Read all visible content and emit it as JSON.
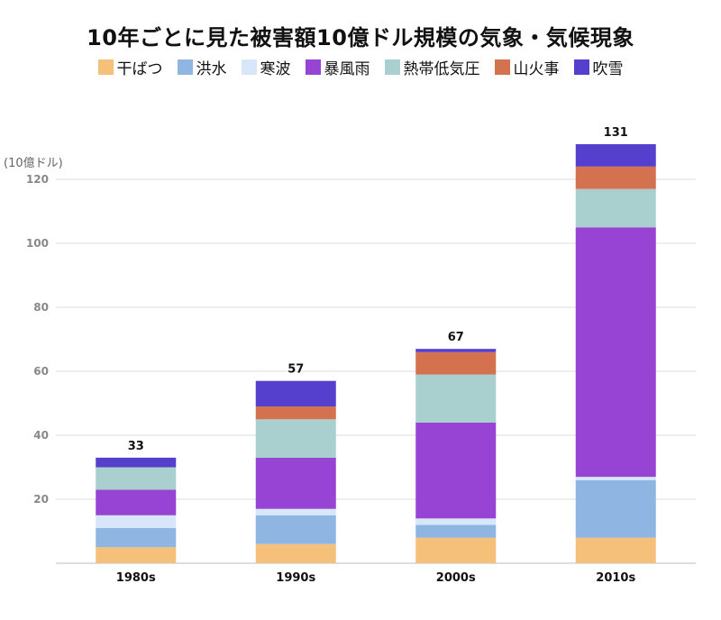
{
  "chart_data": {
    "type": "bar",
    "stacked": true,
    "title": "10年ごとに見た被害額10億ドル規模の気象・気候現象",
    "ylabel": "(10億ドル)",
    "xlabel": "",
    "ylim": [
      0,
      131
    ],
    "yticks": [
      20,
      40,
      60,
      80,
      100,
      120
    ],
    "grid": true,
    "legend_position": "top",
    "categories": [
      "1980s",
      "1990s",
      "2000s",
      "2010s"
    ],
    "totals": [
      33,
      57,
      67,
      131
    ],
    "series": [
      {
        "name": "干ばつ",
        "color": "#f5c07a",
        "values": [
          5,
          6,
          8,
          8
        ]
      },
      {
        "name": "洪水",
        "color": "#8fb5e3",
        "values": [
          6,
          9,
          4,
          18
        ]
      },
      {
        "name": "寒波",
        "color": "#d7e6f8",
        "values": [
          4,
          2,
          2,
          1
        ]
      },
      {
        "name": "暴風雨",
        "color": "#9743d3",
        "values": [
          8,
          16,
          30,
          78
        ]
      },
      {
        "name": "熱帯低気圧",
        "color": "#a9d0ce",
        "values": [
          7,
          12,
          15,
          12
        ]
      },
      {
        "name": "山火事",
        "color": "#d4714e",
        "values": [
          0,
          4,
          7,
          7
        ]
      },
      {
        "name": "吹雪",
        "color": "#5440cc",
        "values": [
          3,
          8,
          1,
          7
        ]
      }
    ]
  }
}
